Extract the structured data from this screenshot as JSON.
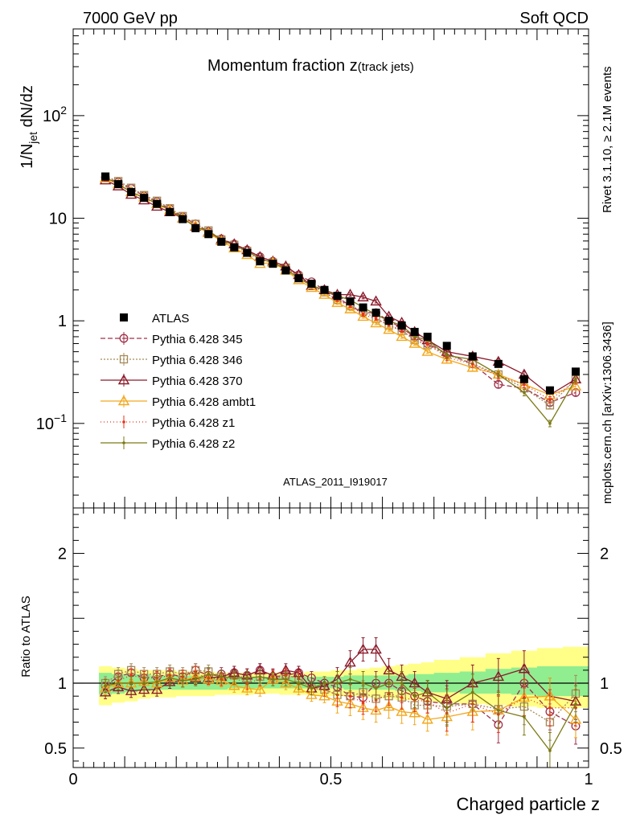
{
  "header": {
    "left": "7000 GeV pp",
    "right": "Soft QCD"
  },
  "side_labels": {
    "rivet": "Rivet 3.1.10, ≥ 2.1M events",
    "mcplots": "mcplots.cern.ch [arXiv:1306.3436]"
  },
  "chart_data": [
    {
      "type": "line",
      "panel": "main",
      "title_main": "Momentum fraction z",
      "title_sub": "(track jets)",
      "ylabel": "1/N",
      "ylabel_sub": "jet",
      "ylabel_tail": " dN/dz",
      "watermark": "ATLAS_2011_I919017",
      "yscale": "log",
      "xlim": [
        0,
        1
      ],
      "ylim": [
        0.015,
        700
      ],
      "y_ticks": [
        {
          "v": 0.1,
          "base": "10",
          "exp": "−1"
        },
        {
          "v": 1,
          "base": "1",
          "exp": ""
        },
        {
          "v": 10,
          "base": "10",
          "exp": ""
        },
        {
          "v": 100,
          "base": "10",
          "exp": "2"
        }
      ],
      "x": [
        0.0625,
        0.0875,
        0.1125,
        0.1375,
        0.1625,
        0.1875,
        0.2125,
        0.2375,
        0.2625,
        0.2875,
        0.3125,
        0.3375,
        0.3625,
        0.3875,
        0.4125,
        0.4375,
        0.4625,
        0.4875,
        0.5125,
        0.5375,
        0.5625,
        0.5875,
        0.6125,
        0.6375,
        0.6625,
        0.6875,
        0.725,
        0.775,
        0.825,
        0.875,
        0.925,
        0.975
      ],
      "series": [
        {
          "name": "ATLAS",
          "color": "#000000",
          "marker": "square-filled",
          "values": [
            25.5,
            21.5,
            18.0,
            15.8,
            13.8,
            11.5,
            9.8,
            8.0,
            7.0,
            5.9,
            5.2,
            4.6,
            3.8,
            3.6,
            3.1,
            2.6,
            2.3,
            2.0,
            1.75,
            1.55,
            1.35,
            1.2,
            1.0,
            0.9,
            0.78,
            0.7,
            0.57,
            0.45,
            0.38,
            0.27,
            0.21,
            0.32
          ]
        },
        {
          "name": "Pythia 6.428 345",
          "color": "#a0304a",
          "marker": "circle-open",
          "dash": "6,3",
          "values": [
            25.0,
            22.5,
            19.5,
            16.5,
            14.5,
            12.3,
            10.3,
            8.8,
            7.4,
            6.3,
            5.6,
            4.9,
            4.2,
            3.8,
            3.3,
            2.8,
            2.4,
            2.0,
            1.7,
            1.4,
            1.2,
            1.2,
            1.0,
            0.85,
            0.7,
            0.6,
            0.48,
            0.38,
            0.24,
            0.22,
            0.16,
            0.2
          ]
        },
        {
          "name": "Pythia 6.428 346",
          "color": "#a58a58",
          "marker": "square-open",
          "dash": "2,2",
          "values": [
            25.5,
            23.0,
            19.8,
            16.8,
            14.8,
            12.5,
            10.5,
            8.8,
            7.6,
            6.2,
            5.5,
            4.8,
            4.0,
            3.7,
            3.3,
            2.7,
            2.2,
            1.9,
            1.6,
            1.4,
            1.25,
            1.05,
            0.9,
            0.8,
            0.65,
            0.58,
            0.47,
            0.38,
            0.3,
            0.22,
            0.15,
            0.27
          ]
        },
        {
          "name": "Pythia 6.428 370",
          "color": "#8b1a2b",
          "marker": "triangle-open",
          "values": [
            23.5,
            20.5,
            17.0,
            15.0,
            13.0,
            11.5,
            10.0,
            8.3,
            7.3,
            6.2,
            5.6,
            4.9,
            4.2,
            3.8,
            3.4,
            2.8,
            2.2,
            2.0,
            1.8,
            1.8,
            1.7,
            1.55,
            1.1,
            0.96,
            0.78,
            0.65,
            0.5,
            0.45,
            0.4,
            0.3,
            0.19,
            0.27
          ]
        },
        {
          "name": "Pythia 6.428 ambt1",
          "color": "#f2a81d",
          "marker": "triangle-open",
          "values": [
            24.5,
            21.5,
            18.0,
            16.0,
            13.8,
            12.0,
            10.0,
            8.4,
            7.2,
            6.0,
            5.1,
            4.4,
            3.6,
            3.7,
            3.1,
            2.5,
            2.1,
            1.8,
            1.5,
            1.3,
            1.1,
            0.95,
            0.82,
            0.7,
            0.6,
            0.5,
            0.42,
            0.35,
            0.3,
            0.24,
            0.19,
            0.23
          ]
        },
        {
          "name": "Pythia 6.428 z1",
          "color": "#e8321a",
          "marker": "dot",
          "dash": "1,3",
          "values": [
            25.0,
            22.0,
            19.0,
            16.5,
            14.3,
            12.2,
            10.3,
            8.6,
            7.3,
            6.1,
            5.4,
            4.6,
            3.9,
            3.8,
            3.3,
            2.7,
            2.2,
            1.9,
            1.6,
            1.4,
            1.15,
            1.05,
            0.92,
            0.8,
            0.68,
            0.6,
            0.44,
            0.38,
            0.29,
            0.24,
            0.17,
            0.26
          ]
        },
        {
          "name": "Pythia 6.428 z2",
          "color": "#7b7a14",
          "marker": "dot",
          "values": [
            25.0,
            21.5,
            18.0,
            15.8,
            14.0,
            12.0,
            10.0,
            8.2,
            7.5,
            6.2,
            5.4,
            4.8,
            4.0,
            3.7,
            3.2,
            2.6,
            2.2,
            2.0,
            1.75,
            1.6,
            1.35,
            1.15,
            1.0,
            0.9,
            0.7,
            0.65,
            0.46,
            0.42,
            0.3,
            0.2,
            0.1,
            0.27
          ]
        }
      ]
    },
    {
      "type": "line",
      "panel": "ratio",
      "ylabel": "Ratio to ATLAS",
      "xlabel": "Charged particle z",
      "xlim": [
        0,
        1
      ],
      "ylim": [
        0.35,
        2.35
      ],
      "y_ticks": [
        {
          "v": 0.5,
          "label": "0.5"
        },
        {
          "v": 1,
          "label": "1"
        },
        {
          "v": 2,
          "label": "2"
        }
      ],
      "x_ticks": [
        {
          "v": 0,
          "label": "0"
        },
        {
          "v": 0.5,
          "label": "0.5"
        },
        {
          "v": 1,
          "label": "1"
        }
      ],
      "band_colors": {
        "inner": "#90ee90",
        "outer": "#ffff88"
      },
      "band_inner": [
        [
          0.91,
          1.08
        ],
        [
          0.92,
          1.07
        ],
        [
          0.93,
          1.07
        ],
        [
          0.94,
          1.07
        ],
        [
          0.95,
          1.06
        ],
        [
          0.95,
          1.06
        ],
        [
          0.95,
          1.06
        ],
        [
          0.95,
          1.06
        ],
        [
          0.95,
          1.05
        ],
        [
          0.95,
          1.05
        ],
        [
          0.96,
          1.05
        ],
        [
          0.96,
          1.05
        ],
        [
          0.96,
          1.05
        ],
        [
          0.96,
          1.05
        ],
        [
          0.96,
          1.05
        ],
        [
          0.96,
          1.05
        ],
        [
          0.96,
          1.05
        ],
        [
          0.96,
          1.05
        ],
        [
          0.96,
          1.05
        ],
        [
          0.95,
          1.06
        ],
        [
          0.95,
          1.06
        ],
        [
          0.95,
          1.06
        ],
        [
          0.95,
          1.06
        ],
        [
          0.94,
          1.06
        ],
        [
          0.94,
          1.07
        ],
        [
          0.93,
          1.07
        ],
        [
          0.93,
          1.08
        ],
        [
          0.92,
          1.09
        ],
        [
          0.92,
          1.11
        ],
        [
          0.91,
          1.12
        ],
        [
          0.9,
          1.13
        ],
        [
          0.9,
          1.13
        ]
      ],
      "band_outer": [
        [
          0.83,
          1.13
        ],
        [
          0.85,
          1.12
        ],
        [
          0.86,
          1.11
        ],
        [
          0.88,
          1.1
        ],
        [
          0.89,
          1.1
        ],
        [
          0.89,
          1.1
        ],
        [
          0.9,
          1.09
        ],
        [
          0.9,
          1.09
        ],
        [
          0.9,
          1.09
        ],
        [
          0.91,
          1.08
        ],
        [
          0.91,
          1.08
        ],
        [
          0.91,
          1.08
        ],
        [
          0.92,
          1.08
        ],
        [
          0.92,
          1.08
        ],
        [
          0.91,
          1.08
        ],
        [
          0.91,
          1.08
        ],
        [
          0.91,
          1.09
        ],
        [
          0.9,
          1.09
        ],
        [
          0.9,
          1.1
        ],
        [
          0.9,
          1.1
        ],
        [
          0.89,
          1.11
        ],
        [
          0.89,
          1.12
        ],
        [
          0.88,
          1.13
        ],
        [
          0.87,
          1.14
        ],
        [
          0.87,
          1.15
        ],
        [
          0.86,
          1.16
        ],
        [
          0.85,
          1.18
        ],
        [
          0.84,
          1.2
        ],
        [
          0.83,
          1.23
        ],
        [
          0.82,
          1.25
        ],
        [
          0.81,
          1.27
        ],
        [
          0.81,
          1.28
        ]
      ],
      "series": [
        {
          "name": "Pythia 6.428 345",
          "color": "#a0304a",
          "marker": "circle-open",
          "dash": "6,3",
          "values": [
            0.98,
            1.05,
            1.08,
            1.04,
            1.05,
            1.07,
            1.05,
            1.1,
            1.06,
            1.07,
            1.08,
            1.06,
            1.1,
            1.05,
            1.06,
            1.08,
            1.04,
            1.0,
            0.97,
            0.9,
            0.89,
            1.0,
            1.0,
            0.94,
            0.9,
            0.86,
            0.84,
            0.84,
            0.68,
            1.0,
            0.78,
            0.67
          ]
        },
        {
          "name": "Pythia 6.428 346",
          "color": "#a58a58",
          "marker": "square-open",
          "dash": "2,2",
          "values": [
            1.0,
            1.07,
            1.1,
            1.07,
            1.07,
            1.09,
            1.07,
            1.1,
            1.09,
            1.05,
            1.06,
            1.04,
            1.05,
            1.03,
            1.06,
            1.04,
            0.96,
            0.95,
            0.91,
            0.9,
            0.93,
            0.88,
            0.9,
            0.89,
            0.83,
            0.83,
            0.82,
            0.84,
            0.8,
            0.82,
            0.7,
            0.92
          ]
        },
        {
          "name": "Pythia 6.428 370",
          "color": "#8b1a2b",
          "marker": "triangle-open",
          "values": [
            0.93,
            0.97,
            0.94,
            0.95,
            0.95,
            1.01,
            1.02,
            1.04,
            1.04,
            1.05,
            1.08,
            1.06,
            1.1,
            1.06,
            1.1,
            1.08,
            0.96,
            0.98,
            1.03,
            1.16,
            1.26,
            1.26,
            1.1,
            1.05,
            1.0,
            0.93,
            0.88,
            1.0,
            1.05,
            1.11,
            0.9,
            0.86
          ]
        },
        {
          "name": "Pythia 6.428 ambt1",
          "color": "#f2a81d",
          "marker": "triangle-open",
          "values": [
            0.96,
            1.0,
            1.0,
            1.01,
            1.0,
            1.04,
            1.02,
            1.05,
            1.03,
            1.02,
            0.98,
            0.96,
            0.95,
            1.03,
            1.0,
            0.96,
            0.91,
            0.9,
            0.86,
            0.84,
            0.81,
            0.79,
            0.82,
            0.78,
            0.77,
            0.72,
            0.74,
            0.78,
            0.79,
            0.89,
            0.9,
            0.72
          ]
        },
        {
          "name": "Pythia 6.428 z1",
          "color": "#e8321a",
          "marker": "dot",
          "dash": "1,3",
          "values": [
            0.98,
            1.02,
            1.06,
            1.04,
            1.04,
            1.06,
            1.05,
            1.08,
            1.04,
            1.03,
            1.04,
            1.0,
            1.03,
            1.05,
            1.06,
            1.04,
            0.96,
            0.95,
            0.91,
            0.9,
            0.85,
            0.87,
            0.92,
            0.89,
            0.87,
            0.86,
            0.77,
            0.84,
            0.76,
            0.89,
            0.81,
            0.81
          ]
        },
        {
          "name": "Pythia 6.428 z2",
          "color": "#7b7a14",
          "marker": "dot",
          "values": [
            0.98,
            1.0,
            1.0,
            1.0,
            1.01,
            1.04,
            1.02,
            1.03,
            1.07,
            1.05,
            1.04,
            1.04,
            1.05,
            1.03,
            1.03,
            1.0,
            0.96,
            1.0,
            1.0,
            1.03,
            1.0,
            0.96,
            1.0,
            1.0,
            0.9,
            0.93,
            0.81,
            0.93,
            0.79,
            0.74,
            0.48,
            0.84
          ]
        }
      ]
    }
  ]
}
